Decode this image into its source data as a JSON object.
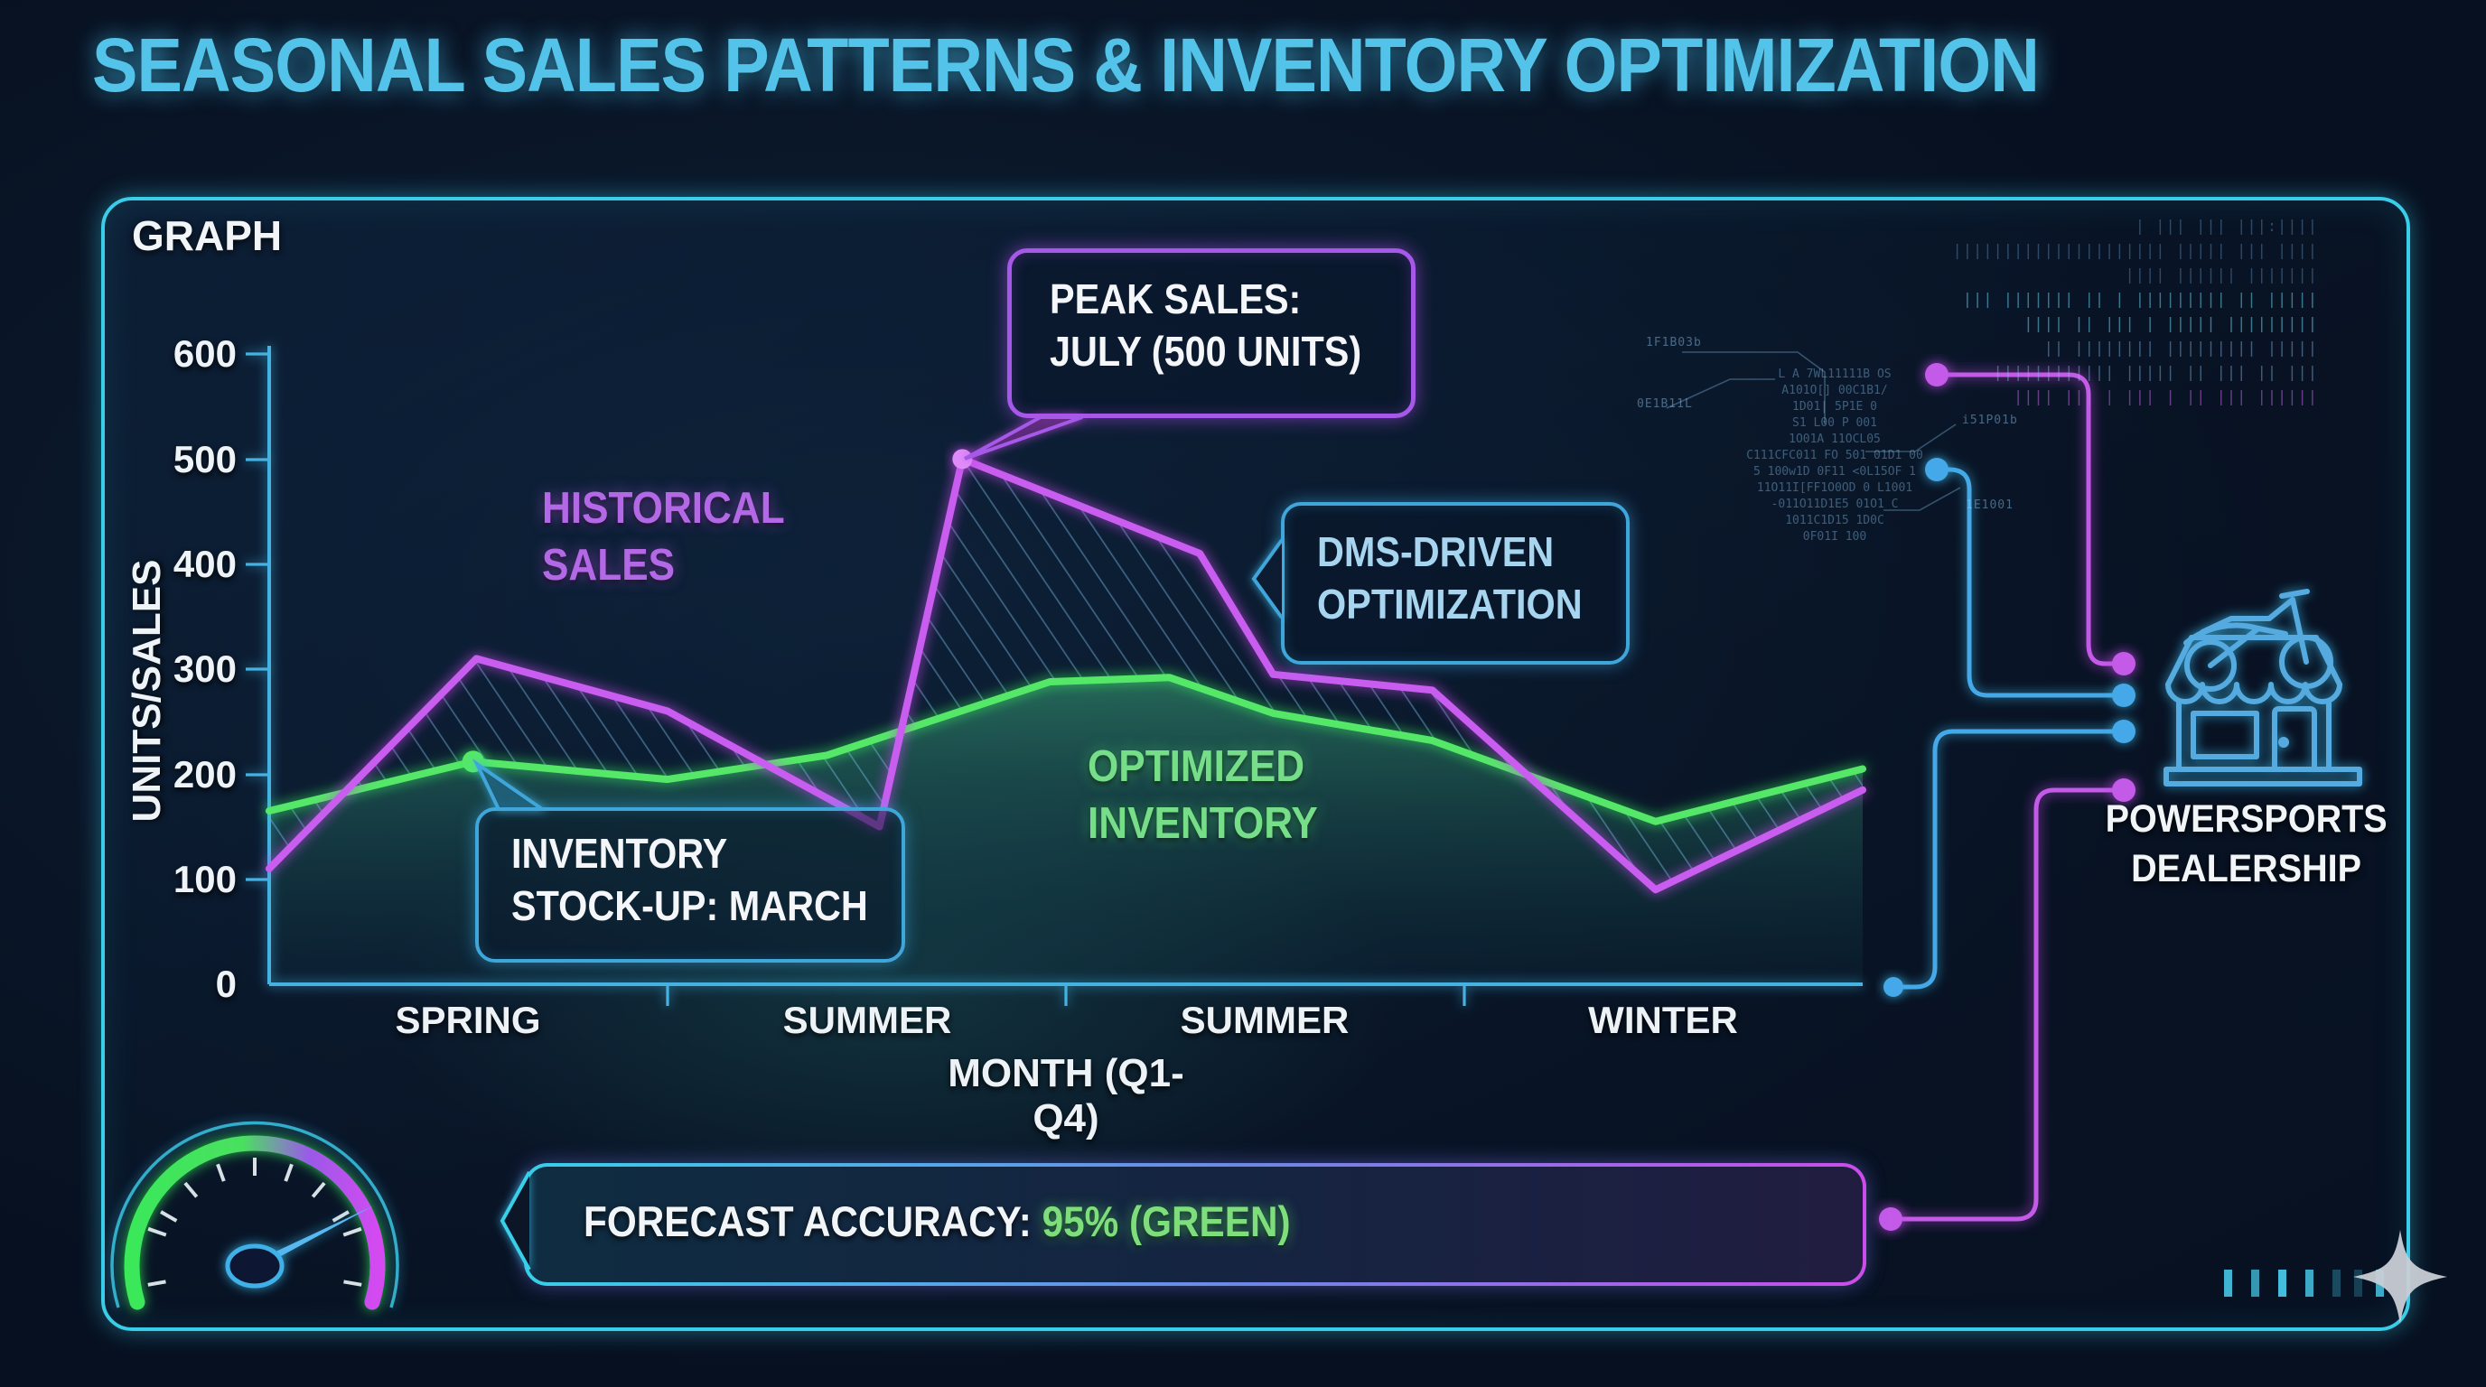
{
  "title": "SEASONAL SALES PATTERNS & INVENTORY OPTIMIZATION",
  "panel": {
    "label": "GRAPH"
  },
  "chart_data": {
    "type": "area",
    "title": "SEASONAL SALES PATTERNS & INVENTORY OPTIMIZATION",
    "xlabel": "MONTH (Q1-Q4)",
    "ylabel": "UNITS/SALES",
    "ylim": [
      0,
      600
    ],
    "y_ticks": [
      600,
      500,
      400,
      300,
      200,
      100,
      0
    ],
    "x_categories": [
      "SPRING",
      "SUMMER",
      "SUMMER",
      "WINTER"
    ],
    "grid": false,
    "legend_position": "inline-labels",
    "series": [
      {
        "name": "HISTORICAL SALES",
        "color": "#c95df0",
        "points": [
          {
            "f": 0.0,
            "v": 110
          },
          {
            "f": 0.13,
            "v": 310
          },
          {
            "f": 0.25,
            "v": 260
          },
          {
            "f": 0.383,
            "v": 150
          },
          {
            "f": 0.435,
            "v": 500
          },
          {
            "f": 0.584,
            "v": 410
          },
          {
            "f": 0.63,
            "v": 295
          },
          {
            "f": 0.73,
            "v": 280
          },
          {
            "f": 0.87,
            "v": 90
          },
          {
            "f": 1.0,
            "v": 185
          }
        ]
      },
      {
        "name": "OPTIMIZED INVENTORY",
        "color": "#55e868",
        "points": [
          {
            "f": 0.0,
            "v": 165
          },
          {
            "f": 0.128,
            "v": 212
          },
          {
            "f": 0.25,
            "v": 195
          },
          {
            "f": 0.35,
            "v": 218
          },
          {
            "f": 0.49,
            "v": 288
          },
          {
            "f": 0.565,
            "v": 292
          },
          {
            "f": 0.63,
            "v": 258
          },
          {
            "f": 0.73,
            "v": 232
          },
          {
            "f": 0.87,
            "v": 155
          },
          {
            "f": 1.0,
            "v": 205
          }
        ]
      }
    ],
    "annotations": [
      {
        "label": "PEAK SALES: JULY (500 UNITS)",
        "point": {
          "f": 0.435,
          "v": 500
        },
        "color": "#df8df8"
      },
      {
        "label": "INVENTORY STOCK-UP: MARCH",
        "point": {
          "f": 0.128,
          "v": 212
        },
        "color": "#55e868"
      }
    ]
  },
  "y_axis": {
    "label": "UNITS/SALES",
    "ticks": [
      "600",
      "500",
      "400",
      "300",
      "200",
      "100",
      "0"
    ]
  },
  "x_axis": {
    "label": "MONTH (Q1-Q4)",
    "categories": [
      "SPRING",
      "SUMMER",
      "SUMMER",
      "WINTER"
    ]
  },
  "series_labels": {
    "historical": {
      "line1": "HISTORICAL",
      "line2": "SALES"
    },
    "optimized": {
      "line1": "OPTIMIZED",
      "line2": "INVENTORY"
    }
  },
  "callouts": {
    "peak": {
      "line1": "PEAK SALES:",
      "line2": "JULY (500 UNITS)"
    },
    "dms": {
      "line1": "DMS-DRIVEN",
      "line2": "OPTIMIZATION"
    },
    "stockup": {
      "line1": "INVENTORY",
      "line2": "STOCK-UP: MARCH"
    }
  },
  "forecast": {
    "prefix": "FORECAST ACCURACY: ",
    "highlight": "95% (GREEN)"
  },
  "dealership": {
    "line1": "POWERSPORTS",
    "line2": "DEALERSHIP"
  },
  "colors": {
    "title": "#54c3ea",
    "panel_border": "#39cde9",
    "axis": "#45b2e2",
    "historical_line": "#c95df0",
    "optimized_line": "#55e868",
    "callout_purple": "#a658e8",
    "callout_cyan": "#3fa6da",
    "forecast_green_text": "#7ede7c",
    "icon_cyan": "#55abdf",
    "gauge_green": "#3ae85a",
    "gauge_purple": "#d44af0"
  },
  "decor": {
    "stream_rows": [
      "| ||| ||| |||:|||| ||||||||||||||||||||| ||||| ||| |||| |||| |||||| |||||||",
      "||| ||||||| || | ||||||||| || ||||| |||| || ||| | ||||| |||||||||",
      "|| |||||||| ||||||||| ||||| |||||||||||| ||||| || ||| || |||",
      "|||| ||| | ||| | || ||| ||||||"
    ],
    "code_lines": [
      "L  A 7WL11111B OS",
      "A101O[] 00C1B1/",
      "1D01| 5P1E 0",
      "S1 L00 P 001",
      "1O01A 11OCL05",
      "C111CFC011 FO 501 01D1 00",
      "5 100w1D 0F11 <0L15OF 1",
      "11O11I[FF1O0OD 0 L1001",
      "-011O11D1E5 01O1 C",
      "1011C1D15 1D0C",
      "0F01I 100"
    ],
    "chip_labels": [
      "1F1B03b",
      "0E1B11L",
      "i51P01b",
      "1E1001"
    ]
  }
}
